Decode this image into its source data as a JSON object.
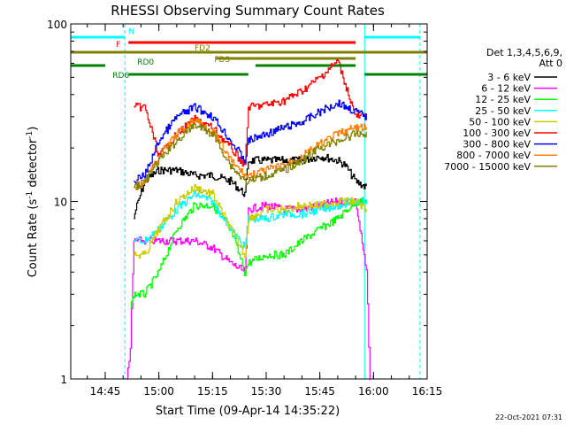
{
  "chart_data": {
    "type": "line",
    "title": "RHESSI Observing Summary Count Rates",
    "xlabel": "Start Time (09-Apr-14 14:35:22)",
    "ylabel": "Count Rate (s⁻¹ detector⁻¹)",
    "ylabel_main": "Count Rate (s",
    "ylabel_sup1": "-1",
    "ylabel_mid": " detector",
    "ylabel_sup2": "-1",
    "ylabel_end": ")",
    "y_scale": "log",
    "ylim": [
      1,
      100
    ],
    "xlim": [
      "14:35:22",
      "16:15:00"
    ],
    "x_ticks": [
      "14:45",
      "15:00",
      "15:15",
      "15:30",
      "15:45",
      "16:00",
      "16:15"
    ],
    "y_ticks": [
      "1",
      "10",
      "100"
    ],
    "legend_position": "right",
    "legend_header": [
      "Det 1,3,4,5,6,9,",
      "Att 0"
    ],
    "footer_date": "22-Oct-2021 07:31",
    "series": [
      {
        "name": "3 - 6 keV",
        "color": "#000000",
        "x": [
          "14:53",
          "14:53:30",
          "14:56",
          "15:00",
          "15:05",
          "15:10",
          "15:15",
          "15:20",
          "15:24",
          "15:25",
          "15:30",
          "15:35",
          "15:40",
          "15:45",
          "15:50",
          "15:52",
          "15:55",
          "15:58"
        ],
        "values": [
          8,
          9,
          13,
          15,
          15,
          14,
          14,
          13,
          11,
          17,
          17,
          17,
          17,
          18,
          17,
          16,
          13,
          12
        ]
      },
      {
        "name": "6 - 12 keV",
        "color": "#ff00ff",
        "x": [
          "14:51",
          "14:52",
          "14:53",
          "14:56",
          "15:00",
          "15:05",
          "15:10",
          "15:15",
          "15:20",
          "15:24",
          "15:25",
          "15:30",
          "15:35",
          "15:40",
          "15:45",
          "15:50",
          "15:55",
          "15:58",
          "15:59"
        ],
        "values": [
          1,
          1.5,
          6,
          6,
          6,
          6,
          6,
          5.5,
          4.5,
          4,
          9,
          9.5,
          9,
          9,
          9.5,
          10,
          10,
          4,
          1
        ]
      },
      {
        "name": "12 - 25 keV",
        "color": "#00ff00",
        "x": [
          "14:52",
          "14:53",
          "14:56",
          "15:00",
          "15:05",
          "15:10",
          "15:15",
          "15:20",
          "15:24",
          "15:25",
          "15:30",
          "15:35",
          "15:40",
          "15:45",
          "15:50",
          "15:55",
          "15:58"
        ],
        "values": [
          2.5,
          3,
          3,
          4,
          7,
          9.5,
          9.5,
          7,
          4,
          4.5,
          5,
          5,
          6,
          7,
          8,
          10,
          10
        ]
      },
      {
        "name": "25 - 50 keV",
        "color": "#00ffff",
        "x": [
          "14:53",
          "14:56",
          "15:00",
          "15:05",
          "15:10",
          "15:15",
          "15:20",
          "15:24",
          "15:25",
          "15:30",
          "15:35",
          "15:40",
          "15:45",
          "15:50",
          "15:55",
          "15:58"
        ],
        "values": [
          6,
          6,
          7,
          9,
          11,
          10,
          7,
          5.5,
          8,
          8,
          8.5,
          8.5,
          9,
          9.5,
          10,
          10
        ]
      },
      {
        "name": "50 - 100 keV",
        "color": "#cccc00",
        "x": [
          "14:53",
          "14:56",
          "15:00",
          "15:05",
          "15:10",
          "15:15",
          "15:20",
          "15:24",
          "15:25",
          "15:30",
          "15:35",
          "15:40",
          "15:45",
          "15:50",
          "15:55",
          "15:58"
        ],
        "values": [
          5,
          5,
          7,
          10,
          12,
          11,
          7,
          5,
          8,
          9,
          9,
          9.5,
          9.5,
          10,
          10,
          9
        ]
      },
      {
        "name": "100 - 300 keV",
        "color": "#ff0000",
        "x": [
          "14:53",
          "14:56",
          "15:00",
          "15:05",
          "15:10",
          "15:15",
          "15:20",
          "15:24",
          "15:25",
          "15:30",
          "15:35",
          "15:40",
          "15:45",
          "15:50",
          "15:55",
          "15:58"
        ],
        "values": [
          34,
          34,
          18,
          24,
          29,
          26,
          20,
          16,
          34,
          35,
          37,
          42,
          50,
          62,
          30,
          30
        ]
      },
      {
        "name": "300 - 800 keV",
        "color": "#0000ff",
        "x": [
          "14:53",
          "14:56",
          "15:00",
          "15:05",
          "15:10",
          "15:15",
          "15:20",
          "15:24",
          "15:25",
          "15:30",
          "15:35",
          "15:40",
          "15:45",
          "15:50",
          "15:55",
          "15:58"
        ],
        "values": [
          13,
          14,
          22,
          30,
          34,
          30,
          22,
          17,
          22,
          24,
          26,
          28,
          32,
          36,
          32,
          30
        ]
      },
      {
        "name": "800 - 7000 keV",
        "color": "#ff8000",
        "x": [
          "14:53",
          "14:56",
          "15:00",
          "15:05",
          "15:10",
          "15:15",
          "15:20",
          "15:24",
          "15:25",
          "15:30",
          "15:35",
          "15:40",
          "15:45",
          "15:50",
          "15:55",
          "15:58"
        ],
        "values": [
          12,
          13,
          18,
          24,
          29,
          25,
          17,
          14,
          14,
          15,
          16,
          18,
          21,
          24,
          26,
          26
        ]
      },
      {
        "name": "7000 - 15000 keV",
        "color": "#808000",
        "x": [
          "14:53",
          "14:56",
          "15:00",
          "15:05",
          "15:10",
          "15:15",
          "15:20",
          "15:24",
          "15:25",
          "15:30",
          "15:35",
          "15:40",
          "15:45",
          "15:50",
          "15:55",
          "15:58"
        ],
        "values": [
          12,
          13,
          17,
          22,
          27,
          24,
          16,
          13,
          13,
          14,
          15,
          17,
          20,
          22,
          24,
          24
        ]
      }
    ],
    "flag_bars": [
      {
        "label": "N",
        "color": "#00ffff",
        "segments": [
          [
            "14:35:22",
            "14:50:30"
          ],
          [
            "15:57:30",
            "16:13:00"
          ]
        ]
      },
      {
        "label": "F",
        "color": "#ff0000",
        "segments": [
          [
            "14:51:30",
            "15:55:00"
          ]
        ]
      },
      {
        "label": "FD2",
        "color": "#808000",
        "segments": [
          [
            "14:35:22",
            "16:15:00"
          ]
        ]
      },
      {
        "label": "FD3",
        "color": "#808000",
        "segments": [
          [
            "15:16:00",
            "15:55:00"
          ]
        ]
      },
      {
        "label": "RD0",
        "color": "#008000",
        "segments": [
          [
            "14:35:22",
            "14:45:00"
          ],
          [
            "15:27:00",
            "15:55:00"
          ]
        ]
      },
      {
        "label": "RD6",
        "color": "#008000",
        "segments": [
          [
            "14:51:30",
            "15:25:00"
          ],
          [
            "15:57:30",
            "16:15:00"
          ]
        ]
      }
    ],
    "vertical_lines": [
      {
        "color": "#00ffff",
        "x": "14:50:30",
        "style": "dashed"
      },
      {
        "color": "#00ffff",
        "x": "15:57:30",
        "style": "solid"
      },
      {
        "color": "#00ffff",
        "x": "16:13:00",
        "style": "dashed"
      }
    ]
  }
}
